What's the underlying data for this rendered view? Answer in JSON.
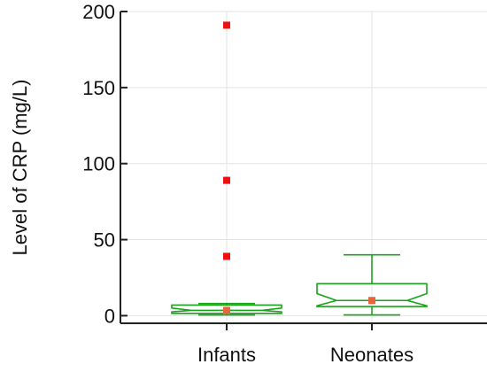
{
  "chart_data": {
    "type": "box",
    "title": "",
    "xlabel": "",
    "ylabel": "Level of CRP (mg/L)",
    "ylim": [
      -5,
      200
    ],
    "yticks": [
      0,
      50,
      100,
      150,
      200
    ],
    "grid": true,
    "categories": [
      "Infants",
      "Neonates"
    ],
    "boxes": [
      {
        "category": "Infants",
        "whisker_low": 0.5,
        "q1": 1.5,
        "median": 3.5,
        "q3": 7,
        "whisker_high": 8,
        "notch_low": 2.5,
        "notch_high": 5,
        "mean": 3.5,
        "outliers": [
          39,
          89,
          191
        ]
      },
      {
        "category": "Neonates",
        "whisker_low": 0.5,
        "q1": 6,
        "median": 10,
        "q3": 21,
        "whisker_high": 40,
        "notch_low": 6.5,
        "notch_high": 14.5,
        "mean": 10,
        "outliers": []
      }
    ],
    "colors": {
      "box": "#1aa31a",
      "outlier": "#ee1111",
      "mean": "#e8643c",
      "grid": "#e3e3e3",
      "axis": "#222222"
    }
  }
}
